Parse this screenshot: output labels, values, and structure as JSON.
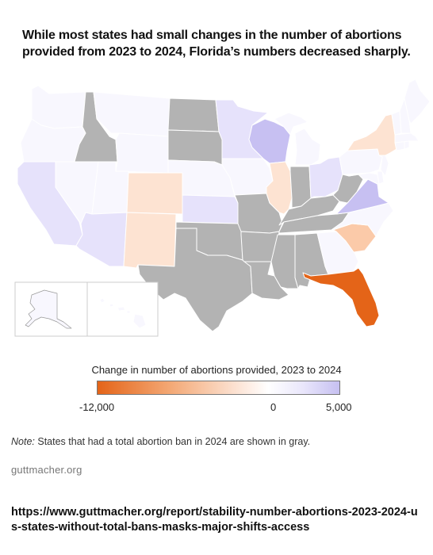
{
  "title": "While most states had small changes in the number of abortions provided from 2023 to 2024, Florida’s numbers decreased sharply.",
  "colors": {
    "ban_gray": "#b3b3b3",
    "florida": "#e46418",
    "light_orange": "#fde3d2",
    "mid_orange": "#fbcaa9",
    "light_purple": "#e6e2fb",
    "mid_purple": "#c7c0f2",
    "near_white": "#f8f7fe"
  },
  "legend": {
    "title": "Change in number of abortions provided, 2023 to 2024",
    "min_label": "-12,000",
    "zero_label": "0",
    "max_label": "5,000",
    "min": -12000,
    "max": 5000
  },
  "note": {
    "label": "Note:",
    "text": " States that had a total abortion ban in 2024 are shown in gray."
  },
  "source": "guttmacher.org",
  "url": "https://www.guttmacher.org/report/stability-number-abortions-2023-2024-us-states-without-total-bans-masks-major-shifts-access",
  "states": [
    {
      "name": "Washington",
      "category": "near_white"
    },
    {
      "name": "Oregon",
      "category": "near_white"
    },
    {
      "name": "California",
      "category": "light_purple"
    },
    {
      "name": "Nevada",
      "category": "near_white"
    },
    {
      "name": "Idaho",
      "category": "ban_gray"
    },
    {
      "name": "Montana",
      "category": "near_white"
    },
    {
      "name": "Wyoming",
      "category": "near_white"
    },
    {
      "name": "Utah",
      "category": "near_white"
    },
    {
      "name": "Arizona",
      "category": "light_purple"
    },
    {
      "name": "Colorado",
      "category": "light_orange"
    },
    {
      "name": "New Mexico",
      "category": "light_orange"
    },
    {
      "name": "North Dakota",
      "category": "ban_gray"
    },
    {
      "name": "South Dakota",
      "category": "ban_gray"
    },
    {
      "name": "Nebraska",
      "category": "near_white"
    },
    {
      "name": "Kansas",
      "category": "light_purple"
    },
    {
      "name": "Oklahoma",
      "category": "ban_gray"
    },
    {
      "name": "Texas",
      "category": "ban_gray"
    },
    {
      "name": "Minnesota",
      "category": "light_purple"
    },
    {
      "name": "Iowa",
      "category": "near_white"
    },
    {
      "name": "Missouri",
      "category": "ban_gray"
    },
    {
      "name": "Arkansas",
      "category": "ban_gray"
    },
    {
      "name": "Louisiana",
      "category": "ban_gray"
    },
    {
      "name": "Wisconsin",
      "category": "mid_purple"
    },
    {
      "name": "Illinois",
      "category": "light_orange"
    },
    {
      "name": "Michigan",
      "category": "near_white"
    },
    {
      "name": "Indiana",
      "category": "ban_gray"
    },
    {
      "name": "Ohio",
      "category": "light_purple"
    },
    {
      "name": "Kentucky",
      "category": "ban_gray"
    },
    {
      "name": "Tennessee",
      "category": "ban_gray"
    },
    {
      "name": "Mississippi",
      "category": "ban_gray"
    },
    {
      "name": "Alabama",
      "category": "ban_gray"
    },
    {
      "name": "Georgia",
      "category": "near_white"
    },
    {
      "name": "Florida",
      "category": "florida"
    },
    {
      "name": "South Carolina",
      "category": "mid_orange"
    },
    {
      "name": "North Carolina",
      "category": "near_white"
    },
    {
      "name": "Virginia",
      "category": "mid_purple"
    },
    {
      "name": "West Virginia",
      "category": "ban_gray"
    },
    {
      "name": "Pennsylvania",
      "category": "near_white"
    },
    {
      "name": "New York",
      "category": "light_orange"
    },
    {
      "name": "Maryland",
      "category": "near_white"
    },
    {
      "name": "New Jersey",
      "category": "near_white"
    },
    {
      "name": "Delaware",
      "category": "near_white"
    },
    {
      "name": "Connecticut",
      "category": "near_white"
    },
    {
      "name": "Rhode Island",
      "category": "near_white"
    },
    {
      "name": "Massachusetts",
      "category": "near_white"
    },
    {
      "name": "Vermont",
      "category": "near_white"
    },
    {
      "name": "New Hampshire",
      "category": "near_white"
    },
    {
      "name": "Maine",
      "category": "near_white"
    },
    {
      "name": "Alaska",
      "category": "near_white"
    },
    {
      "name": "Hawaii",
      "category": "near_white"
    }
  ]
}
